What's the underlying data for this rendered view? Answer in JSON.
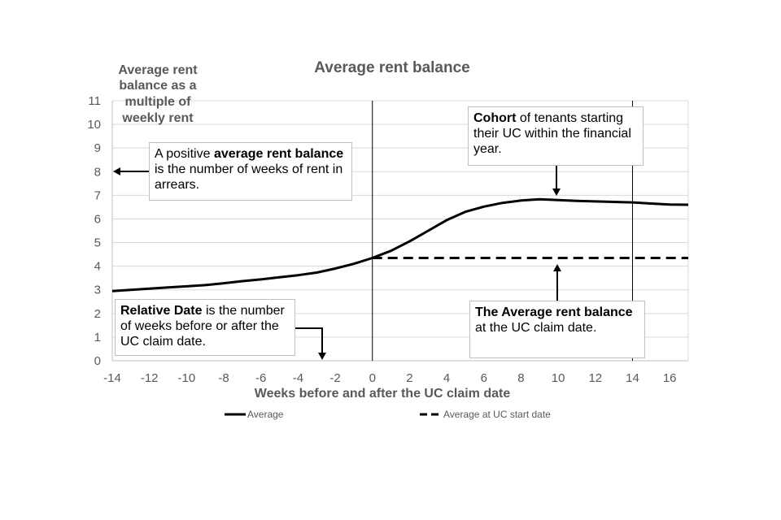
{
  "chart_data": {
    "type": "line",
    "title": "Average rent balance",
    "ylabel_lines": [
      "Average rent",
      "balance as a",
      "multiple of",
      "weekly rent"
    ],
    "xlabel": "Weeks before and after the UC claim date",
    "xlim": [
      -14,
      17
    ],
    "ylim": [
      0,
      11
    ],
    "x_ticks": [
      "-14",
      "-12",
      "-10",
      "-8",
      "-6",
      "-4",
      "-2",
      "0",
      "2",
      "4",
      "6",
      "8",
      "10",
      "12",
      "14",
      "16"
    ],
    "y_ticks": [
      "0",
      "1",
      "2",
      "3",
      "4",
      "5",
      "6",
      "7",
      "8",
      "9",
      "10",
      "11"
    ],
    "grid": true,
    "vertical_reference_lines": [
      0,
      14
    ],
    "legend_position": "bottom",
    "series": [
      {
        "name": "Average",
        "style": "solid",
        "x": [
          -14,
          -13,
          -12,
          -11,
          -10,
          -9,
          -8,
          -7,
          -6,
          -5,
          -4,
          -3,
          -2,
          -1,
          0,
          1,
          2,
          3,
          4,
          5,
          6,
          7,
          8,
          9,
          10,
          11,
          12,
          13,
          14,
          15,
          16,
          17
        ],
        "y": [
          2.95,
          3.0,
          3.05,
          3.1,
          3.15,
          3.2,
          3.28,
          3.37,
          3.44,
          3.53,
          3.62,
          3.73,
          3.9,
          4.1,
          4.35,
          4.65,
          5.05,
          5.5,
          5.95,
          6.3,
          6.52,
          6.68,
          6.78,
          6.83,
          6.8,
          6.76,
          6.74,
          6.72,
          6.7,
          6.65,
          6.61,
          6.6
        ]
      },
      {
        "name": "Average at UC start date",
        "style": "dashed",
        "x": [
          0,
          17
        ],
        "y": [
          4.35,
          4.35
        ]
      }
    ],
    "annotations": [
      {
        "id": "cohort",
        "bold": "Cohort",
        "text": " of tenants starting their UC within the financial year."
      },
      {
        "id": "positive",
        "prefix": "A positive ",
        "bold": "average rent balance",
        "text": " is the number of weeks of rent in arrears."
      },
      {
        "id": "relative",
        "bold": "Relative Date",
        "text": " is the number of weeks before or after the UC claim date."
      },
      {
        "id": "ucbalance",
        "bold": "The Average rent balance",
        "text": " at the UC claim date."
      }
    ]
  }
}
